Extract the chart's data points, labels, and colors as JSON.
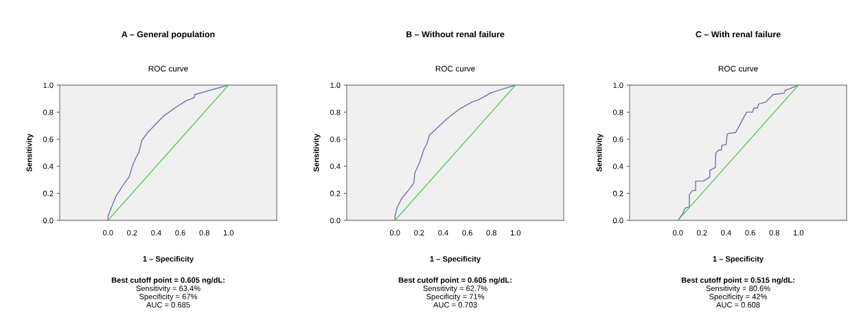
{
  "chart_data": [
    {
      "type": "line",
      "title": "A – General population",
      "subtitle": "ROC curve",
      "xlabel": "1 – Specificity",
      "ylabel": "Sensitivity",
      "series": [
        {
          "color": "#6b70b3",
          "x": [
            0,
            0,
            0.022,
            0.067,
            0.14,
            0.175,
            0.21,
            0.23,
            0.247,
            0.256,
            0.28,
            0.33,
            0.46,
            0.57,
            0.65,
            0.715,
            0.72,
            1.0
          ],
          "values": [
            0,
            0.03,
            0.08,
            0.18,
            0.28,
            0.32,
            0.42,
            0.46,
            0.487,
            0.5,
            0.59,
            0.65,
            0.77,
            0.84,
            0.885,
            0.907,
            0.93,
            1.0
          ]
        },
        {
          "color": "#5cc85c",
          "x": [
            0,
            1
          ],
          "values": [
            0,
            1
          ]
        }
      ],
      "xlim": [
        -0.4,
        1.4
      ],
      "ylim": [
        0,
        1
      ],
      "xticks": [
        {
          "value": 0,
          "label": "0.0"
        },
        {
          "value": 0.2,
          "label": "0.2"
        },
        {
          "value": 0.4,
          "label": "0.4"
        },
        {
          "value": 0.6,
          "label": "0.6"
        },
        {
          "value": 0.8,
          "label": "0.8"
        },
        {
          "value": 1,
          "label": "1.0"
        }
      ],
      "yticks": [
        {
          "value": 0,
          "label": "0.0"
        },
        {
          "value": 0.2,
          "label": "0.2"
        },
        {
          "value": 0.4,
          "label": "0.4"
        },
        {
          "value": 0.6,
          "label": "0.6"
        },
        {
          "value": 0.8,
          "label": "0.8"
        },
        {
          "value": 1,
          "label": "1.0"
        }
      ],
      "annotations": [
        "Best cutoff point = 0.605 ng/dL:",
        "Sensitivity = 63.4%",
        "Specificity = 67%",
        "AUC = 0.685"
      ],
      "grid": false,
      "legend": false
    },
    {
      "type": "line",
      "title": "B – Without renal failure",
      "subtitle": "ROC curve",
      "xlabel": "1 – Specificity",
      "ylabel": "Sensitivity",
      "series": [
        {
          "color": "#6b70b3",
          "x": [
            0,
            0,
            0.016,
            0.054,
            0.11,
            0.156,
            0.165,
            0.2,
            0.227,
            0.237,
            0.266,
            0.285,
            0.43,
            0.53,
            0.64,
            0.69,
            0.8,
            1.0
          ],
          "values": [
            0,
            0.03,
            0.09,
            0.16,
            0.22,
            0.275,
            0.35,
            0.42,
            0.487,
            0.52,
            0.57,
            0.63,
            0.75,
            0.82,
            0.875,
            0.89,
            0.945,
            1.0
          ]
        },
        {
          "color": "#5cc85c",
          "x": [
            0,
            1
          ],
          "values": [
            0,
            1
          ]
        }
      ],
      "xlim": [
        -0.4,
        1.4
      ],
      "ylim": [
        0,
        1
      ],
      "xticks": [
        {
          "value": 0,
          "label": "0.0"
        },
        {
          "value": 0.2,
          "label": "0.2"
        },
        {
          "value": 0.4,
          "label": "0.4"
        },
        {
          "value": 0.6,
          "label": "0.6"
        },
        {
          "value": 0.8,
          "label": "0.8"
        },
        {
          "value": 1,
          "label": "1.0"
        }
      ],
      "yticks": [
        {
          "value": 0,
          "label": "0.0"
        },
        {
          "value": 0.2,
          "label": "0.2"
        },
        {
          "value": 0.4,
          "label": "0.4"
        },
        {
          "value": 0.6,
          "label": "0.6"
        },
        {
          "value": 0.8,
          "label": "0.8"
        },
        {
          "value": 1,
          "label": "1.0"
        }
      ],
      "annotations": [
        "Best cutoff point = 0.605 ng/dL:",
        "Sensitivity = 62.7%",
        "Specificity = 71%",
        "AUC = 0.703"
      ],
      "grid": false,
      "legend": false
    },
    {
      "type": "line",
      "title": "C – With renal failure",
      "subtitle": "ROC curve",
      "xlabel": "1 – Specificity",
      "ylabel": "Sensitivity",
      "series": [
        {
          "color": "#6b70b3",
          "x": [
            0,
            0.04,
            0.06,
            0.095,
            0.095,
            0.12,
            0.147,
            0.147,
            0.21,
            0.265,
            0.265,
            0.31,
            0.315,
            0.34,
            0.36,
            0.366,
            0.4,
            0.41,
            0.48,
            0.57,
            0.62,
            0.63,
            0.66,
            0.67,
            0.73,
            0.79,
            0.84,
            0.88,
            0.89,
            1.0
          ],
          "values": [
            0,
            0.05,
            0.09,
            0.1,
            0.19,
            0.22,
            0.22,
            0.29,
            0.29,
            0.32,
            0.37,
            0.39,
            0.5,
            0.52,
            0.52,
            0.555,
            0.56,
            0.64,
            0.65,
            0.8,
            0.8,
            0.83,
            0.83,
            0.86,
            0.875,
            0.93,
            0.935,
            0.94,
            0.96,
            1.0
          ]
        },
        {
          "color": "#5cc85c",
          "x": [
            0,
            1
          ],
          "values": [
            0,
            1
          ]
        }
      ],
      "xlim": [
        -0.4,
        1.4
      ],
      "ylim": [
        0,
        1
      ],
      "xticks": [
        {
          "value": 0,
          "label": "0.0"
        },
        {
          "value": 0.2,
          "label": "0.2"
        },
        {
          "value": 0.4,
          "label": "0.4"
        },
        {
          "value": 0.6,
          "label": "0.6"
        },
        {
          "value": 0.8,
          "label": "0.8"
        },
        {
          "value": 1,
          "label": "1.0"
        }
      ],
      "yticks": [
        {
          "value": 0,
          "label": "0.0"
        },
        {
          "value": 0.2,
          "label": "0.2"
        },
        {
          "value": 0.4,
          "label": "0.4"
        },
        {
          "value": 0.6,
          "label": "0.6"
        },
        {
          "value": 0.8,
          "label": "0.8"
        },
        {
          "value": 1,
          "label": "1.0"
        }
      ],
      "annotations": [
        "Best cutoff point = 0.515 ng/dL:",
        "Sensitivity = 80.6%",
        "Specificity = 42%",
        "AUC = 0.608"
      ],
      "grid": false,
      "legend": false
    }
  ]
}
